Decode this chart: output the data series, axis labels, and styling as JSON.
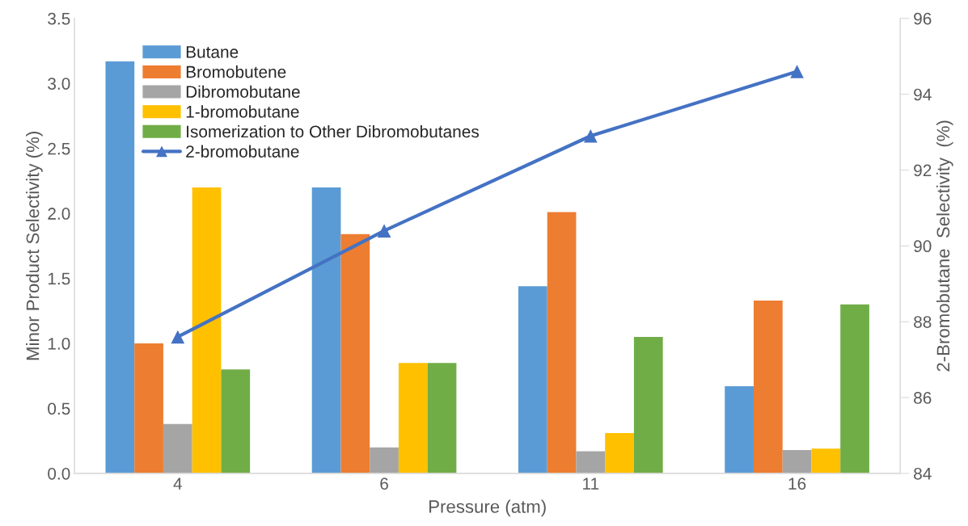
{
  "chart_data": {
    "type": "bar",
    "xlabel": "Pressure (atm)",
    "ylabel": "Minor Product Selectivity (%)",
    "y2label": "2-Bromobutane  Selectivity  (%)",
    "categories": [
      "4",
      "6",
      "11",
      "16"
    ],
    "series": [
      {
        "name": "Butane",
        "color": "#5b9bd5",
        "values": [
          3.17,
          2.2,
          1.44,
          0.67
        ]
      },
      {
        "name": "Bromobutene",
        "color": "#ed7d31",
        "values": [
          1.0,
          1.84,
          2.01,
          1.33
        ]
      },
      {
        "name": "Dibromobutane",
        "color": "#a5a5a5",
        "values": [
          0.38,
          0.2,
          0.17,
          0.18
        ]
      },
      {
        "name": "1-bromobutane",
        "color": "#ffc000",
        "values": [
          2.2,
          0.85,
          0.31,
          0.19
        ]
      },
      {
        "name": "Isomerization to Other Dibromobutanes",
        "color": "#70ad47",
        "values": [
          0.8,
          0.85,
          1.05,
          1.3
        ]
      },
      {
        "name": "2-bromobutane",
        "color": "#4472c4",
        "type": "line",
        "axis": "y2",
        "marker": "triangle",
        "values": [
          87.6,
          90.4,
          92.9,
          94.6
        ]
      }
    ],
    "ylim": [
      0,
      3.5
    ],
    "yticks": [
      {
        "value": 0,
        "label": "0.0"
      },
      0.5,
      {
        "value": 1,
        "label": "1.0"
      },
      1.5,
      {
        "value": 2,
        "label": "2.0"
      },
      2.5,
      {
        "value": 3,
        "label": "3.0"
      },
      3.5
    ],
    "y2lim": [
      84,
      96
    ],
    "y2ticks": [
      84,
      86,
      88,
      90,
      92,
      94,
      96
    ],
    "grid": false,
    "legend": "top left"
  }
}
